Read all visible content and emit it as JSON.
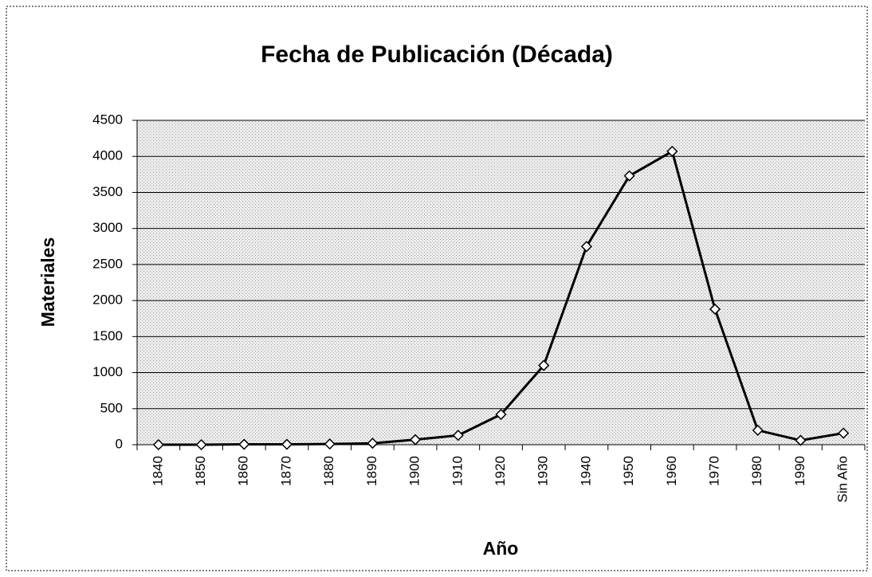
{
  "chart_data": {
    "type": "line",
    "title": "Fecha de Publicación (Década)",
    "x_label": "Año",
    "y_label": "Materiales",
    "categories": [
      "1840",
      "1850",
      "1860",
      "1870",
      "1880",
      "1890",
      "1900",
      "1910",
      "1920",
      "1930",
      "1940",
      "1950",
      "1960",
      "1970",
      "1980",
      "1990",
      "Sin Año"
    ],
    "values": [
      0,
      0,
      5,
      5,
      10,
      20,
      70,
      130,
      420,
      1100,
      2750,
      3730,
      4070,
      1880,
      200,
      60,
      160
    ],
    "color": "#000000",
    "ylim": [
      0,
      4500
    ],
    "yticks": [
      0,
      500,
      1000,
      1500,
      2000,
      2500,
      3000,
      3500,
      4000,
      4500
    ],
    "grid": true
  }
}
